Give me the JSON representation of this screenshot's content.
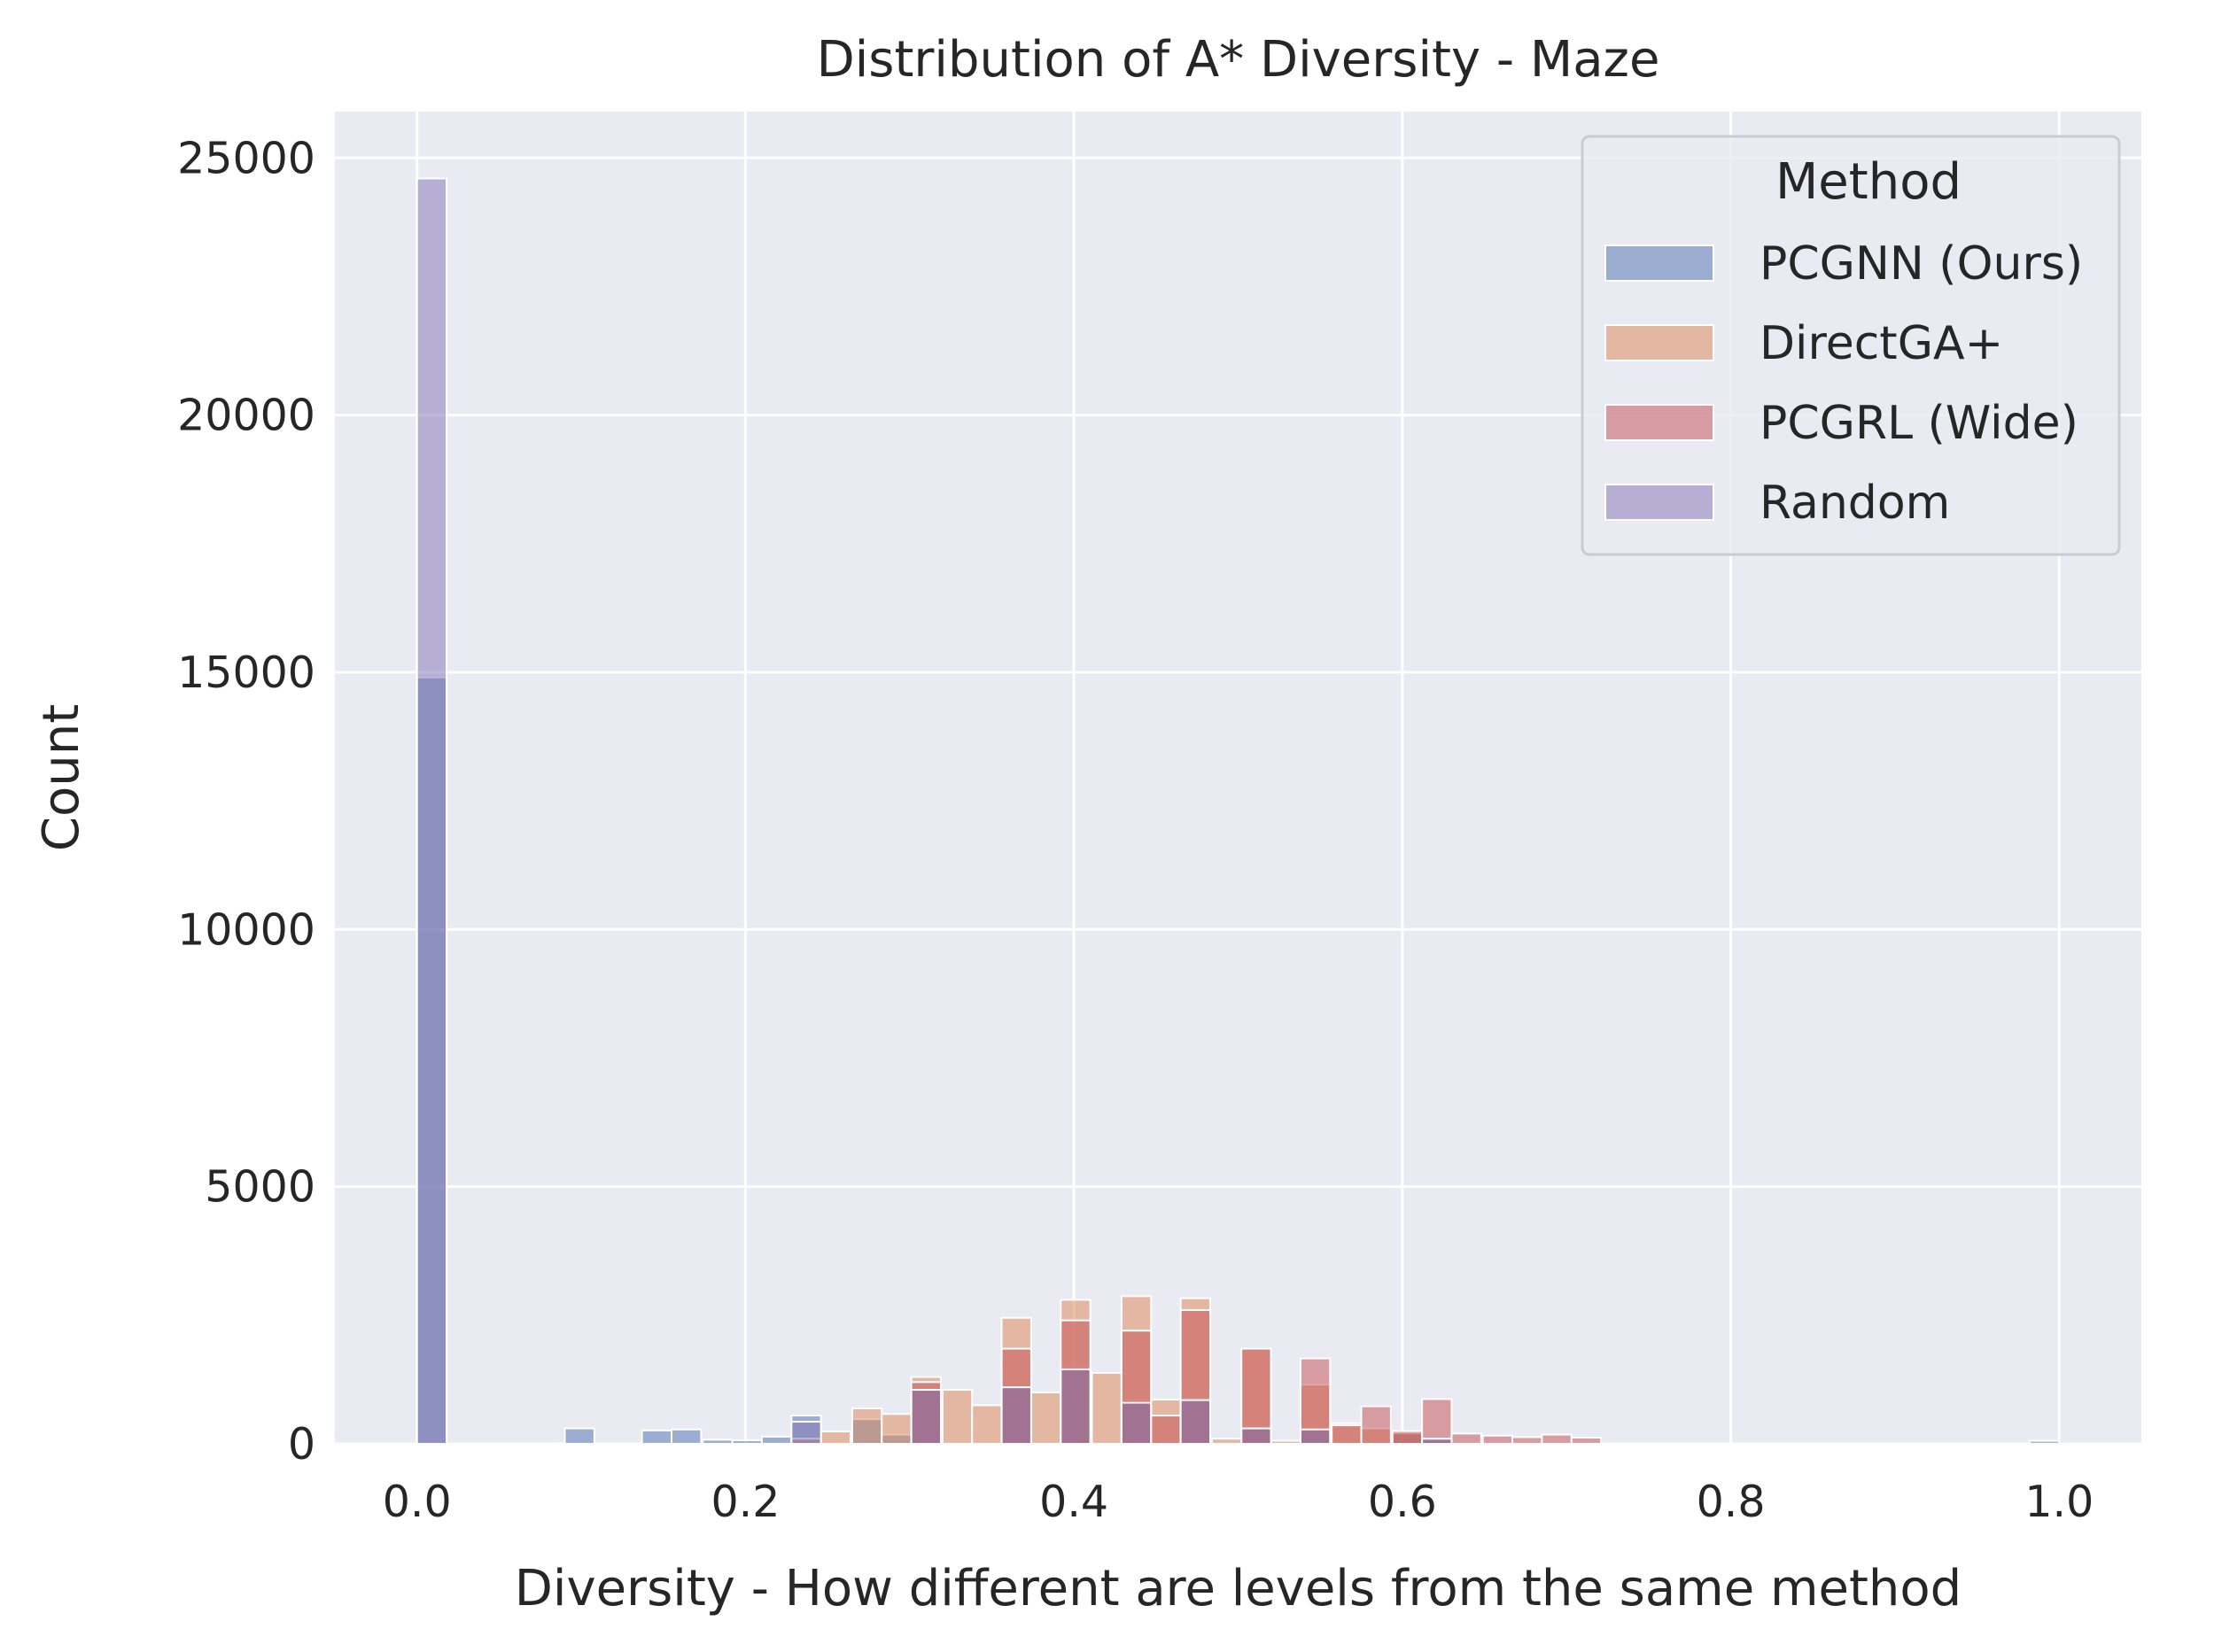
{
  "chart_data": {
    "type": "histogram",
    "title": "Distribution of A* Diversity - Maze",
    "xlabel": "Diversity - How different are levels from the same method",
    "ylabel": "Count",
    "xlim": [
      -0.05,
      1.05
    ],
    "ylim": [
      0,
      25900
    ],
    "x_ticks": [
      "0.0",
      "0.2",
      "0.4",
      "0.6",
      "0.8",
      "1.0"
    ],
    "y_ticks": [
      "0",
      "5000",
      "10000",
      "15000",
      "20000",
      "25000"
    ],
    "grid": true,
    "legend": {
      "title": "Method",
      "placement": "top-right",
      "entries": [
        "PCGNN (Ours)",
        "DirectGA+",
        "PCGRL (Wide)",
        "Random"
      ]
    },
    "bin_width": 0.018,
    "series": [
      {
        "name": "PCGNN (Ours)",
        "color": "#4c72b0",
        "bins": [
          [
            0.0,
            14900
          ],
          [
            0.09,
            300
          ],
          [
            0.137,
            260
          ],
          [
            0.155,
            280
          ],
          [
            0.174,
            80
          ],
          [
            0.192,
            70
          ],
          [
            0.21,
            140
          ],
          [
            0.228,
            550
          ],
          [
            0.265,
            480
          ],
          [
            0.283,
            180
          ],
          [
            0.301,
            1050
          ],
          [
            0.356,
            1100
          ],
          [
            0.392,
            1500
          ],
          [
            0.429,
            850
          ],
          [
            0.465,
            880
          ],
          [
            0.502,
            320
          ],
          [
            0.538,
            300
          ],
          [
            0.594,
            200
          ],
          [
            0.612,
            80
          ]
        ]
      },
      {
        "name": "DirectGA+",
        "color": "#dd8452",
        "bins": [
          [
            0.228,
            100
          ],
          [
            0.246,
            240
          ],
          [
            0.265,
            690
          ],
          [
            0.283,
            580
          ],
          [
            0.301,
            1300
          ],
          [
            0.32,
            1050
          ],
          [
            0.338,
            750
          ],
          [
            0.356,
            2450
          ],
          [
            0.374,
            1000
          ],
          [
            0.392,
            2800
          ],
          [
            0.411,
            1380
          ],
          [
            0.429,
            2870
          ],
          [
            0.447,
            860
          ],
          [
            0.465,
            2830
          ],
          [
            0.484,
            100
          ],
          [
            0.502,
            1850
          ],
          [
            0.52,
            60
          ],
          [
            0.538,
            1150
          ],
          [
            0.557,
            400
          ],
          [
            0.575,
            300
          ],
          [
            0.594,
            220
          ],
          [
            0.612,
            100
          ]
        ]
      },
      {
        "name": "PCGRL (Wide)",
        "color": "#c44e52",
        "bins": [
          [
            0.301,
            1200
          ],
          [
            0.356,
            1850
          ],
          [
            0.392,
            2400
          ],
          [
            0.429,
            2200
          ],
          [
            0.447,
            550
          ],
          [
            0.465,
            2600
          ],
          [
            0.502,
            1850
          ],
          [
            0.538,
            1660
          ],
          [
            0.557,
            360
          ],
          [
            0.575,
            730
          ],
          [
            0.594,
            250
          ],
          [
            0.612,
            870
          ],
          [
            0.63,
            200
          ],
          [
            0.649,
            160
          ],
          [
            0.667,
            130
          ],
          [
            0.685,
            180
          ],
          [
            0.703,
            120
          ]
        ]
      },
      {
        "name": "Random",
        "color": "#8172b3",
        "bins": [
          [
            0.0,
            24600
          ],
          [
            0.228,
            430
          ],
          [
            0.301,
            1050
          ],
          [
            0.356,
            1100
          ],
          [
            0.392,
            1450
          ],
          [
            0.429,
            800
          ],
          [
            0.465,
            850
          ],
          [
            0.502,
            300
          ],
          [
            0.538,
            280
          ],
          [
            0.612,
            100
          ],
          [
            0.982,
            60
          ]
        ]
      }
    ]
  }
}
